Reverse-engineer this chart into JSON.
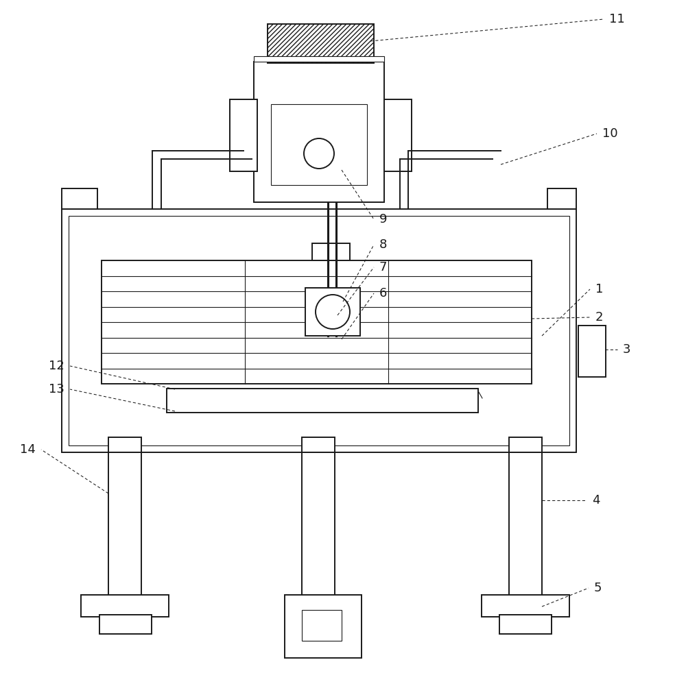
{
  "bg": "#ffffff",
  "lc": "#1a1a1a",
  "lw": 1.4,
  "lw_thin": 0.8,
  "lw_anno": 0.75,
  "anno_dash": [
    4,
    3
  ],
  "fontsize": 13
}
